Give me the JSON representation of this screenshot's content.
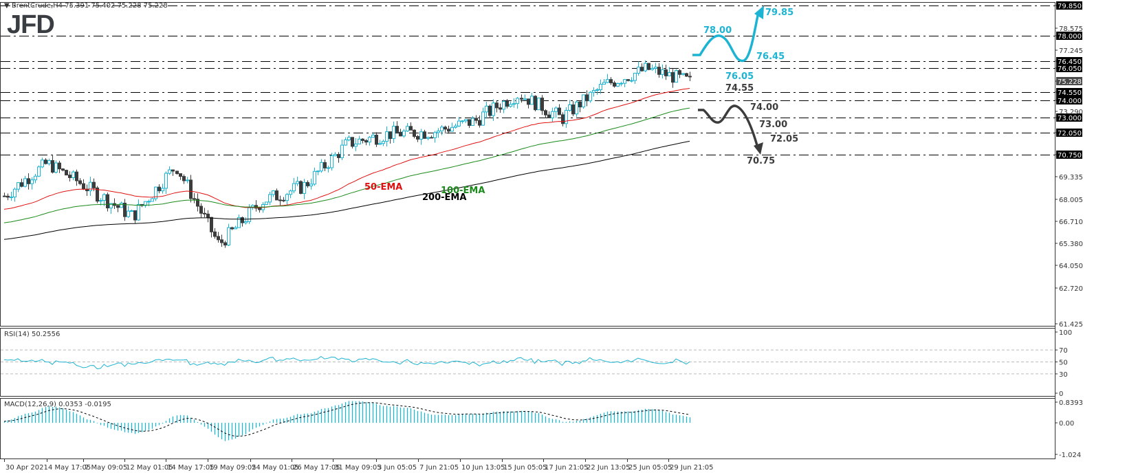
{
  "header": {
    "symbol_line": "BrentCrude,H4  75.391 75.402 75.228 75.228",
    "logo": "JFD"
  },
  "colors": {
    "bull": "#1cb4d2",
    "bear": "#3c3c3c",
    "ema50": "#e01010",
    "ema100": "#1a8a1a",
    "ema200": "#000000",
    "rsi": "#1cb4d2",
    "macd_hist": "#1cb4d2",
    "macd_signal": "#000000",
    "bullish_scenario": "#1cb4d2",
    "bearish_scenario": "#3c3c3c",
    "grid_dash": "#000000",
    "axis_label_bg": "#000000",
    "current_price_bg": "#4a4a4a"
  },
  "chart_data": [
    {
      "type": "candlestick",
      "title": "BrentCrude,H4",
      "ohlc_last": {
        "open": 75.391,
        "high": 75.402,
        "low": 75.228,
        "close": 75.228
      },
      "y_axis": {
        "ticks": [
          "79.850",
          "78.575",
          "78.000",
          "77.245",
          "76.450",
          "76.050",
          "75.228",
          "74.550",
          "74.000",
          "73.290",
          "73.000",
          "72.050",
          "70.750",
          "69.335",
          "68.005",
          "66.710",
          "65.380",
          "64.050",
          "62.720",
          "61.425"
        ],
        "highlighted": [
          "79.850",
          "78.000",
          "76.450",
          "76.050",
          "74.550",
          "74.000",
          "73.000",
          "72.050",
          "70.750"
        ],
        "current_price": "75.228",
        "range": [
          61.425,
          79.85
        ]
      },
      "x_axis": {
        "ticks": [
          "30 Apr 2021",
          "4 May 17:05",
          "7 May 09:05",
          "12 May 01:05",
          "14 May 17:05",
          "19 May 09:05",
          "24 May 01:05",
          "26 May 17:05",
          "31 May 09:05",
          "3 Jun 05:05",
          "7 Jun 21:05",
          "10 Jun 13:05",
          "15 Jun 05:05",
          "17 Jun 21:05",
          "22 Jun 13:05",
          "25 Jun 05:05",
          "29 Jun 21:05"
        ]
      },
      "horizontal_levels": [
        79.85,
        78.0,
        76.45,
        76.05,
        74.55,
        74.0,
        73.0,
        72.05,
        70.75
      ],
      "moving_averages": [
        {
          "name": "50-EMA",
          "label": "50-EMA",
          "color": "#e01010"
        },
        {
          "name": "100-EMA",
          "label": "100-EMA",
          "color": "#1a8a1a"
        },
        {
          "name": "200-EMA",
          "label": "200-EMA",
          "color": "#000000"
        }
      ],
      "annotations": {
        "bullish": [
          "78.00",
          "79.85",
          "76.45",
          "76.05"
        ],
        "bearish": [
          "74.55",
          "74.00",
          "73.00",
          "72.05",
          "70.75"
        ]
      },
      "approx_close_path": [
        {
          "x": "30 Apr 2021",
          "close": 68.2
        },
        {
          "x": "4 May 17:05",
          "close": 70.2
        },
        {
          "x": "7 May 09:05",
          "close": 68.6
        },
        {
          "x": "12 May 01:05",
          "close": 67.0
        },
        {
          "x": "14 May 17:05",
          "close": 70.0
        },
        {
          "x": "19 May 09:05",
          "close": 65.3
        },
        {
          "x": "24 May 01:05",
          "close": 67.9
        },
        {
          "x": "26 May 17:05",
          "close": 68.8
        },
        {
          "x": "31 May 09:05",
          "close": 71.4
        },
        {
          "x": "3 Jun 05:05",
          "close": 72.0
        },
        {
          "x": "7 Jun 21:05",
          "close": 72.1
        },
        {
          "x": "10 Jun 13:05",
          "close": 72.8
        },
        {
          "x": "15 Jun 05:05",
          "close": 74.4
        },
        {
          "x": "17 Jun 21:05",
          "close": 72.9
        },
        {
          "x": "22 Jun 13:05",
          "close": 75.0
        },
        {
          "x": "25 Jun 05:05",
          "close": 76.0
        },
        {
          "x": "29 Jun 21:05",
          "close": 75.2
        }
      ]
    },
    {
      "type": "line",
      "title": "RSI(14) 50.2556",
      "y_ticks": [
        "100",
        "70",
        "50",
        "30",
        "0"
      ],
      "levels": [
        70,
        50,
        30
      ],
      "last_value": 50.2556,
      "range": [
        0,
        100
      ]
    },
    {
      "type": "bar",
      "title": "MACD(12,26,9) 0.0353 -0.0195",
      "y_ticks": [
        "0.8393",
        "0.00",
        "-1.024"
      ],
      "macd": 0.0353,
      "signal": -0.0195,
      "range": [
        -1.024,
        0.8393
      ]
    }
  ],
  "labels": {
    "ema50": "50-EMA",
    "ema100": "100-EMA",
    "ema200": "200-EMA",
    "bull_78": "78.00",
    "bull_7985": "79.85",
    "bull_7645": "76.45",
    "bull_7605": "76.05",
    "bear_7455": "74.55",
    "bear_7400": "74.00",
    "bear_7300": "73.00",
    "bear_7205": "72.05",
    "bear_7075": "70.75",
    "rsi_title": "RSI(14) 50.2556",
    "macd_title": "MACD(12,26,9) 0.0353 -0.0195"
  }
}
